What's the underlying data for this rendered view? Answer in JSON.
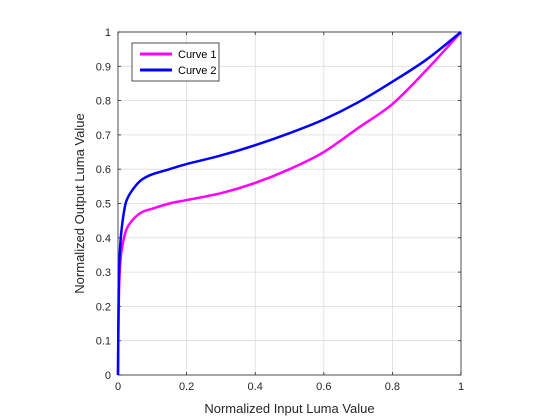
{
  "chart_data": {
    "type": "line",
    "title": "",
    "xlabel": "Normalized Input Luma Value",
    "ylabel": "Normalized Output Luma Value",
    "xlim": [
      0,
      1
    ],
    "ylim": [
      0,
      1
    ],
    "xticks": [
      "0",
      "0.2",
      "0.4",
      "0.6",
      "0.8",
      "1"
    ],
    "yticks": [
      "0",
      "0.1",
      "0.2",
      "0.3",
      "0.4",
      "0.5",
      "0.6",
      "0.7",
      "0.8",
      "0.9",
      "1"
    ],
    "grid": true,
    "legend_position": "top-left",
    "series": [
      {
        "name": "Curve 1",
        "color": "#ff00ff",
        "x": [
          0,
          0.002,
          0.005,
          0.01,
          0.02,
          0.03,
          0.05,
          0.07,
          0.1,
          0.15,
          0.2,
          0.3,
          0.4,
          0.5,
          0.6,
          0.7,
          0.8,
          0.9,
          1.0
        ],
        "y": [
          0,
          0.2,
          0.3,
          0.36,
          0.41,
          0.435,
          0.46,
          0.475,
          0.485,
          0.5,
          0.51,
          0.53,
          0.56,
          0.6,
          0.65,
          0.72,
          0.79,
          0.89,
          1.0
        ]
      },
      {
        "name": "Curve 2",
        "color": "#0000ff",
        "x": [
          0,
          0.002,
          0.005,
          0.01,
          0.02,
          0.03,
          0.05,
          0.07,
          0.1,
          0.15,
          0.2,
          0.3,
          0.4,
          0.5,
          0.6,
          0.7,
          0.8,
          0.9,
          1.0
        ],
        "y": [
          0,
          0.25,
          0.35,
          0.42,
          0.49,
          0.52,
          0.55,
          0.57,
          0.585,
          0.6,
          0.615,
          0.64,
          0.67,
          0.705,
          0.745,
          0.795,
          0.855,
          0.92,
          1.0
        ]
      }
    ]
  }
}
